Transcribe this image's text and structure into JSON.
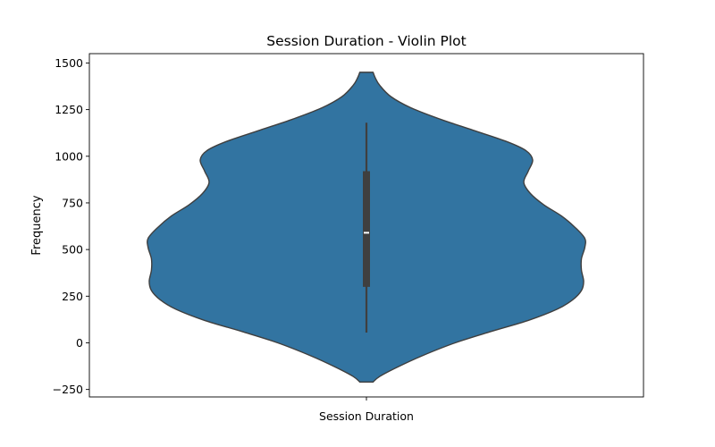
{
  "chart_data": {
    "type": "violin",
    "title": "Session Duration - Violin Plot",
    "xlabel": "",
    "ylabel": "Frequency",
    "categories": [
      "Session Duration"
    ],
    "ylim": [
      -290,
      1550
    ],
    "yticks": [
      -250,
      0,
      250,
      500,
      750,
      1000,
      1250,
      1500
    ],
    "ytick_labels": [
      "−250",
      "0",
      "250",
      "500",
      "750",
      "1000",
      "1250",
      "1500"
    ],
    "grid": false,
    "violin": {
      "name": "Session Duration",
      "fill_color": "#3274a1",
      "edge_color": "#3f3f3f",
      "box_color": "#3f3f3f",
      "median_color": "#ffffff",
      "min_extent": -210,
      "max_extent": 1450,
      "density_profile": [
        {
          "y": -210,
          "d": 0.03
        },
        {
          "y": -180,
          "d": 0.06
        },
        {
          "y": -130,
          "d": 0.14
        },
        {
          "y": -70,
          "d": 0.25
        },
        {
          "y": 0,
          "d": 0.4
        },
        {
          "y": 60,
          "d": 0.56
        },
        {
          "y": 120,
          "d": 0.73
        },
        {
          "y": 180,
          "d": 0.86
        },
        {
          "y": 230,
          "d": 0.93
        },
        {
          "y": 280,
          "d": 0.97
        },
        {
          "y": 330,
          "d": 0.98
        },
        {
          "y": 390,
          "d": 0.97
        },
        {
          "y": 450,
          "d": 0.97
        },
        {
          "y": 510,
          "d": 0.985
        },
        {
          "y": 560,
          "d": 0.985
        },
        {
          "y": 620,
          "d": 0.94
        },
        {
          "y": 680,
          "d": 0.88
        },
        {
          "y": 740,
          "d": 0.8
        },
        {
          "y": 800,
          "d": 0.74
        },
        {
          "y": 860,
          "d": 0.71
        },
        {
          "y": 920,
          "d": 0.73
        },
        {
          "y": 980,
          "d": 0.75
        },
        {
          "y": 1030,
          "d": 0.72
        },
        {
          "y": 1080,
          "d": 0.63
        },
        {
          "y": 1140,
          "d": 0.48
        },
        {
          "y": 1200,
          "d": 0.33
        },
        {
          "y": 1260,
          "d": 0.2
        },
        {
          "y": 1320,
          "d": 0.11
        },
        {
          "y": 1380,
          "d": 0.06
        },
        {
          "y": 1420,
          "d": 0.04
        },
        {
          "y": 1450,
          "d": 0.03
        }
      ],
      "stats": {
        "whisker_low": 55,
        "q1": 300,
        "median": 590,
        "q3": 920,
        "whisker_high": 1180
      }
    }
  }
}
